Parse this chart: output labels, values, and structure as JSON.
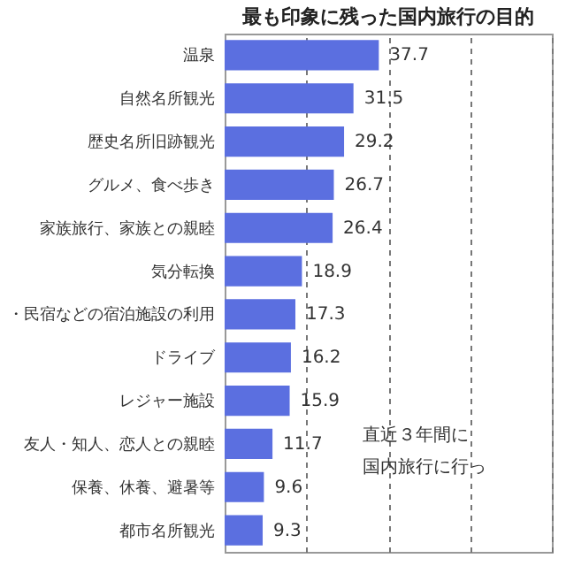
{
  "chart_data": {
    "type": "bar",
    "orientation": "horizontal",
    "title": "最も印象に残った国内旅行の目的",
    "categories": [
      "温泉",
      "自然名所観光",
      "歴史名所旧跡観光",
      "グルメ、食べ歩き",
      "家族旅行、家族との親睦",
      "気分転換",
      "・民宿などの宿泊施設の利用",
      "ドライブ",
      "レジャー施設",
      "友人・知人、恋人との親睦",
      "保養、休養、避暑等",
      "都市名所観光"
    ],
    "values": [
      37.7,
      31.5,
      29.2,
      26.7,
      26.4,
      18.9,
      17.3,
      16.2,
      15.9,
      11.7,
      9.6,
      9.3
    ],
    "color": "#5b6fe0",
    "data_labels": true,
    "xlim": [
      0,
      80
    ],
    "xticks": [
      {
        "value": 0,
        "label": null
      },
      {
        "value": 20,
        "label": null
      },
      {
        "value": 40,
        "label": null
      },
      {
        "value": 60,
        "label": null
      },
      {
        "value": 80,
        "label": null
      }
    ],
    "grid": "x",
    "tick_labels": "y",
    "annotations": [
      "直近３年間に",
      "国内旅行に行っ"
    ]
  }
}
